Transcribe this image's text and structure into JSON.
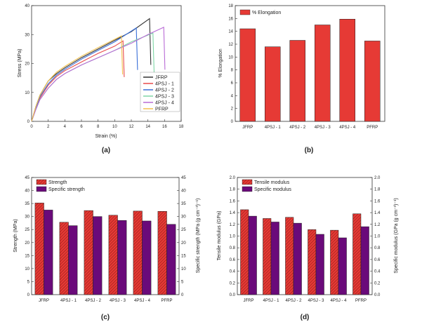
{
  "colors": {
    "jfrp": "#333333",
    "p1": "#e94b4b",
    "p2": "#3a6fd8",
    "p3": "#7fd6a6",
    "p4": "#b96bd6",
    "pfrp": "#f2c14e",
    "red": "#e63a35",
    "purple": "#6a0a7a"
  },
  "chart_data": [
    {
      "panel": "(a)",
      "type": "line",
      "xlabel": "Strain (%)",
      "ylabel": "Stress (MPa)",
      "xlim": [
        0,
        18
      ],
      "ylim": [
        0,
        40
      ],
      "xticks": [
        "0",
        "2",
        "4",
        "6",
        "8",
        "10",
        "12",
        "14",
        "16",
        "18"
      ],
      "yticks": [
        "0",
        "10",
        "20",
        "30",
        "40"
      ],
      "series": [
        {
          "name": "JFRP",
          "color_key": "jfrp",
          "peak": [
            14.2,
            35.5
          ],
          "x": [
            0,
            0.5,
            1,
            2,
            3,
            4,
            6,
            8,
            10,
            12,
            14.2
          ],
          "y": [
            0,
            5,
            9,
            14,
            16.5,
            18.5,
            22,
            25,
            28,
            31,
            35.5
          ]
        },
        {
          "name": "4PSJ - 1",
          "color_key": "p1",
          "peak": [
            11.0,
            27.8
          ],
          "x": [
            0,
            0.5,
            1,
            2,
            3,
            4,
            6,
            8,
            10,
            11.0
          ],
          "y": [
            0,
            4.5,
            8,
            12.5,
            15.5,
            17.5,
            20.5,
            23.5,
            26,
            27.8
          ]
        },
        {
          "name": "4PSJ - 2",
          "color_key": "p2",
          "peak": [
            12.6,
            32.3
          ],
          "x": [
            0,
            0.5,
            1,
            2,
            3,
            4,
            6,
            8,
            10,
            12.6
          ],
          "y": [
            0,
            4.5,
            8.5,
            13,
            16,
            18,
            21.5,
            24.5,
            27.5,
            32.3
          ]
        },
        {
          "name": "4PSJ - 3",
          "color_key": "p3",
          "peak": [
            14.6,
            30.5
          ],
          "x": [
            0,
            0.5,
            1,
            2,
            3,
            4,
            6,
            8,
            10,
            12,
            14.6
          ],
          "y": [
            0,
            4,
            7.5,
            11.5,
            14.5,
            16.5,
            19.5,
            22,
            24.5,
            27.5,
            30.5
          ]
        },
        {
          "name": "4PSJ - 4",
          "color_key": "p4",
          "peak": [
            15.9,
            32.5
          ],
          "x": [
            0,
            0.5,
            1,
            2,
            3,
            4,
            6,
            8,
            10,
            12,
            14,
            15.9
          ],
          "y": [
            0,
            4,
            7.5,
            11.5,
            14.5,
            16.5,
            19.5,
            22,
            24.5,
            27,
            30,
            32.5
          ]
        },
        {
          "name": "PFRP",
          "color_key": "pfrp",
          "peak": [
            10.8,
            29.5
          ],
          "x": [
            0,
            0.5,
            1,
            2,
            3,
            4,
            6,
            8,
            10.8
          ],
          "y": [
            0,
            5,
            9,
            14,
            17,
            19,
            22.5,
            25.5,
            29.5
          ]
        }
      ]
    },
    {
      "panel": "(b)",
      "type": "bar",
      "ylabel": "% Elongation",
      "ylim": [
        0,
        18
      ],
      "yticks": [
        "0",
        "2",
        "4",
        "6",
        "8",
        "10",
        "12",
        "14",
        "16",
        "18"
      ],
      "categories": [
        "JFRP",
        "4PSJ - 1",
        "4PSJ - 2",
        "4PSJ - 3",
        "4PSJ - 4",
        "PFRP"
      ],
      "series": [
        {
          "name": "% Elongation",
          "color_key": "red",
          "values": [
            14.4,
            11.6,
            12.6,
            15.0,
            15.9,
            12.5
          ]
        }
      ]
    },
    {
      "panel": "(c)",
      "type": "bar",
      "ylabel": "Strength (MPa)",
      "y2label": "Specific strength (MPa (g cm⁻³)⁻¹)",
      "ylim": [
        0,
        45
      ],
      "y2lim": [
        0,
        45
      ],
      "yticks": [
        "0",
        "5",
        "10",
        "15",
        "20",
        "25",
        "30",
        "35",
        "40",
        "45"
      ],
      "categories": [
        "JFRP",
        "4PSJ - 1",
        "4PSJ - 2",
        "4PSJ - 3",
        "4PSJ - 4",
        "PFRP"
      ],
      "series": [
        {
          "name": "Strength",
          "color_key": "red",
          "values": [
            35.2,
            27.8,
            32.3,
            30.5,
            32.1,
            32.0
          ]
        },
        {
          "name": "Specific strength",
          "color_key": "purple",
          "values": [
            32.5,
            26.5,
            30.0,
            28.5,
            28.3,
            27.0
          ]
        }
      ]
    },
    {
      "panel": "(d)",
      "type": "bar",
      "ylabel": "Tensile modulus (GPa)",
      "y2label": "Specific modulus (GPa (g cm⁻³)⁻¹)",
      "ylim": [
        0,
        2.0
      ],
      "y2lim": [
        0,
        2.0
      ],
      "yticks": [
        "0.0",
        "0.2",
        "0.4",
        "0.6",
        "0.8",
        "1.0",
        "1.2",
        "1.4",
        "1.6",
        "1.8",
        "2.0"
      ],
      "categories": [
        "JFRP",
        "4PSJ - 1",
        "4PSJ - 2",
        "4PSJ - 3",
        "4PSJ - 4",
        "PFRP"
      ],
      "series": [
        {
          "name": "Tensile modulus",
          "color_key": "red",
          "values": [
            1.45,
            1.3,
            1.32,
            1.11,
            1.1,
            1.38
          ]
        },
        {
          "name": "Specific modulus",
          "color_key": "purple",
          "values": [
            1.34,
            1.24,
            1.22,
            1.03,
            0.97,
            1.16
          ]
        }
      ]
    }
  ]
}
